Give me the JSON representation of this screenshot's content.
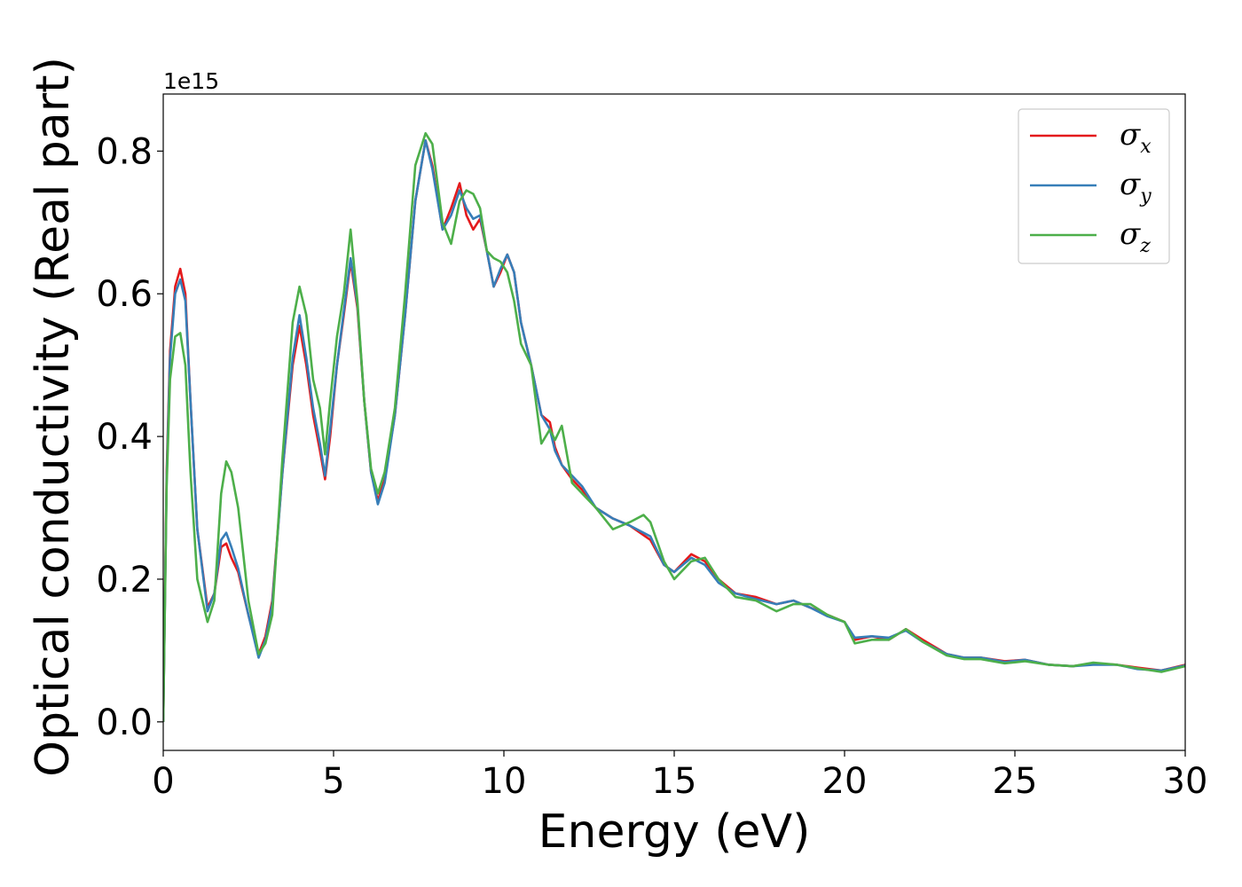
{
  "chart_data": {
    "type": "line",
    "xlabel": "Energy (eV)",
    "ylabel": "Optical conductivity (Real part)",
    "y_offset_label": "1e15",
    "xlim": [
      0,
      30
    ],
    "ylim": [
      -0.04,
      0.88
    ],
    "x_ticks": [
      0,
      5,
      10,
      15,
      20,
      25,
      30
    ],
    "x_tick_labels": [
      "0",
      "5",
      "10",
      "15",
      "20",
      "25",
      "30"
    ],
    "y_ticks": [
      0.0,
      0.2,
      0.4,
      0.6,
      0.8
    ],
    "y_tick_labels": [
      "0.0",
      "0.2",
      "0.4",
      "0.6",
      "0.8"
    ],
    "grid": false,
    "legend_position": "top-right",
    "series": [
      {
        "name": "σx",
        "symbol": "σ",
        "subscript": "x",
        "color": "#e41a1c",
        "points": [
          [
            0,
            0.0
          ],
          [
            0.1,
            0.35
          ],
          [
            0.2,
            0.52
          ],
          [
            0.35,
            0.61
          ],
          [
            0.5,
            0.635
          ],
          [
            0.65,
            0.6
          ],
          [
            0.8,
            0.45
          ],
          [
            1.0,
            0.27
          ],
          [
            1.3,
            0.16
          ],
          [
            1.5,
            0.18
          ],
          [
            1.7,
            0.245
          ],
          [
            1.85,
            0.25
          ],
          [
            2.0,
            0.23
          ],
          [
            2.2,
            0.21
          ],
          [
            2.5,
            0.15
          ],
          [
            2.8,
            0.095
          ],
          [
            3.0,
            0.12
          ],
          [
            3.2,
            0.17
          ],
          [
            3.5,
            0.35
          ],
          [
            3.8,
            0.5
          ],
          [
            4.0,
            0.555
          ],
          [
            4.2,
            0.5
          ],
          [
            4.4,
            0.43
          ],
          [
            4.6,
            0.38
          ],
          [
            4.75,
            0.34
          ],
          [
            4.9,
            0.4
          ],
          [
            5.1,
            0.5
          ],
          [
            5.3,
            0.57
          ],
          [
            5.5,
            0.645
          ],
          [
            5.7,
            0.58
          ],
          [
            5.9,
            0.45
          ],
          [
            6.1,
            0.35
          ],
          [
            6.3,
            0.31
          ],
          [
            6.5,
            0.34
          ],
          [
            6.8,
            0.43
          ],
          [
            7.1,
            0.57
          ],
          [
            7.4,
            0.73
          ],
          [
            7.7,
            0.815
          ],
          [
            7.9,
            0.78
          ],
          [
            8.2,
            0.69
          ],
          [
            8.45,
            0.72
          ],
          [
            8.7,
            0.755
          ],
          [
            8.9,
            0.71
          ],
          [
            9.1,
            0.69
          ],
          [
            9.3,
            0.705
          ],
          [
            9.5,
            0.66
          ],
          [
            9.7,
            0.61
          ],
          [
            9.9,
            0.63
          ],
          [
            10.1,
            0.655
          ],
          [
            10.3,
            0.63
          ],
          [
            10.5,
            0.56
          ],
          [
            10.8,
            0.5
          ],
          [
            11.1,
            0.43
          ],
          [
            11.35,
            0.42
          ],
          [
            11.5,
            0.385
          ],
          [
            11.7,
            0.36
          ],
          [
            12.0,
            0.34
          ],
          [
            12.3,
            0.325
          ],
          [
            12.7,
            0.3
          ],
          [
            13.2,
            0.285
          ],
          [
            13.7,
            0.275
          ],
          [
            14.3,
            0.255
          ],
          [
            14.7,
            0.22
          ],
          [
            15.0,
            0.21
          ],
          [
            15.5,
            0.235
          ],
          [
            15.9,
            0.225
          ],
          [
            16.3,
            0.2
          ],
          [
            16.8,
            0.18
          ],
          [
            17.4,
            0.175
          ],
          [
            18.0,
            0.165
          ],
          [
            18.5,
            0.17
          ],
          [
            19.0,
            0.16
          ],
          [
            19.5,
            0.15
          ],
          [
            20.0,
            0.14
          ],
          [
            20.3,
            0.115
          ],
          [
            20.8,
            0.12
          ],
          [
            21.3,
            0.115
          ],
          [
            21.8,
            0.13
          ],
          [
            22.3,
            0.115
          ],
          [
            23.0,
            0.095
          ],
          [
            23.5,
            0.09
          ],
          [
            24.0,
            0.09
          ],
          [
            24.7,
            0.085
          ],
          [
            25.3,
            0.087
          ],
          [
            26.0,
            0.08
          ],
          [
            26.7,
            0.078
          ],
          [
            27.3,
            0.082
          ],
          [
            28.0,
            0.08
          ],
          [
            28.6,
            0.076
          ],
          [
            29.3,
            0.072
          ],
          [
            30.0,
            0.08
          ]
        ]
      },
      {
        "name": "σy",
        "symbol": "σ",
        "subscript": "y",
        "color": "#377eb8",
        "points": [
          [
            0,
            0.0
          ],
          [
            0.1,
            0.34
          ],
          [
            0.2,
            0.51
          ],
          [
            0.35,
            0.6
          ],
          [
            0.5,
            0.62
          ],
          [
            0.65,
            0.59
          ],
          [
            0.8,
            0.45
          ],
          [
            1.0,
            0.27
          ],
          [
            1.3,
            0.155
          ],
          [
            1.5,
            0.18
          ],
          [
            1.7,
            0.255
          ],
          [
            1.85,
            0.265
          ],
          [
            2.0,
            0.245
          ],
          [
            2.2,
            0.215
          ],
          [
            2.5,
            0.15
          ],
          [
            2.8,
            0.09
          ],
          [
            3.0,
            0.115
          ],
          [
            3.2,
            0.165
          ],
          [
            3.5,
            0.35
          ],
          [
            3.8,
            0.51
          ],
          [
            4.0,
            0.57
          ],
          [
            4.2,
            0.51
          ],
          [
            4.4,
            0.44
          ],
          [
            4.6,
            0.39
          ],
          [
            4.75,
            0.345
          ],
          [
            4.9,
            0.41
          ],
          [
            5.1,
            0.5
          ],
          [
            5.3,
            0.575
          ],
          [
            5.5,
            0.65
          ],
          [
            5.7,
            0.585
          ],
          [
            5.9,
            0.45
          ],
          [
            6.1,
            0.35
          ],
          [
            6.3,
            0.305
          ],
          [
            6.5,
            0.335
          ],
          [
            6.8,
            0.43
          ],
          [
            7.1,
            0.57
          ],
          [
            7.4,
            0.73
          ],
          [
            7.7,
            0.815
          ],
          [
            7.9,
            0.775
          ],
          [
            8.2,
            0.69
          ],
          [
            8.45,
            0.71
          ],
          [
            8.7,
            0.745
          ],
          [
            8.9,
            0.72
          ],
          [
            9.1,
            0.705
          ],
          [
            9.3,
            0.71
          ],
          [
            9.5,
            0.66
          ],
          [
            9.7,
            0.61
          ],
          [
            9.9,
            0.635
          ],
          [
            10.1,
            0.655
          ],
          [
            10.3,
            0.63
          ],
          [
            10.5,
            0.56
          ],
          [
            10.8,
            0.5
          ],
          [
            11.1,
            0.43
          ],
          [
            11.35,
            0.41
          ],
          [
            11.5,
            0.38
          ],
          [
            11.7,
            0.36
          ],
          [
            12.0,
            0.345
          ],
          [
            12.3,
            0.33
          ],
          [
            12.7,
            0.3
          ],
          [
            13.2,
            0.285
          ],
          [
            13.7,
            0.275
          ],
          [
            14.3,
            0.26
          ],
          [
            14.7,
            0.22
          ],
          [
            15.0,
            0.21
          ],
          [
            15.5,
            0.23
          ],
          [
            15.9,
            0.22
          ],
          [
            16.3,
            0.195
          ],
          [
            16.8,
            0.18
          ],
          [
            17.4,
            0.172
          ],
          [
            18.0,
            0.165
          ],
          [
            18.5,
            0.17
          ],
          [
            19.0,
            0.16
          ],
          [
            19.5,
            0.148
          ],
          [
            20.0,
            0.14
          ],
          [
            20.3,
            0.118
          ],
          [
            20.8,
            0.12
          ],
          [
            21.3,
            0.118
          ],
          [
            21.8,
            0.128
          ],
          [
            22.3,
            0.112
          ],
          [
            23.0,
            0.095
          ],
          [
            23.5,
            0.09
          ],
          [
            24.0,
            0.09
          ],
          [
            24.7,
            0.084
          ],
          [
            25.3,
            0.087
          ],
          [
            26.0,
            0.08
          ],
          [
            26.7,
            0.078
          ],
          [
            27.3,
            0.08
          ],
          [
            28.0,
            0.08
          ],
          [
            28.6,
            0.074
          ],
          [
            29.3,
            0.072
          ],
          [
            30.0,
            0.079
          ]
        ]
      },
      {
        "name": "σz",
        "symbol": "σ",
        "subscript": "z",
        "color": "#4daf4a",
        "points": [
          [
            0,
            0.0
          ],
          [
            0.1,
            0.33
          ],
          [
            0.2,
            0.48
          ],
          [
            0.35,
            0.54
          ],
          [
            0.5,
            0.545
          ],
          [
            0.65,
            0.5
          ],
          [
            0.8,
            0.35
          ],
          [
            1.0,
            0.2
          ],
          [
            1.3,
            0.14
          ],
          [
            1.5,
            0.17
          ],
          [
            1.7,
            0.32
          ],
          [
            1.85,
            0.365
          ],
          [
            2.0,
            0.35
          ],
          [
            2.2,
            0.3
          ],
          [
            2.5,
            0.17
          ],
          [
            2.8,
            0.095
          ],
          [
            3.0,
            0.11
          ],
          [
            3.2,
            0.15
          ],
          [
            3.5,
            0.37
          ],
          [
            3.8,
            0.56
          ],
          [
            4.0,
            0.61
          ],
          [
            4.2,
            0.57
          ],
          [
            4.4,
            0.48
          ],
          [
            4.6,
            0.44
          ],
          [
            4.75,
            0.375
          ],
          [
            4.9,
            0.45
          ],
          [
            5.1,
            0.54
          ],
          [
            5.3,
            0.6
          ],
          [
            5.5,
            0.69
          ],
          [
            5.7,
            0.59
          ],
          [
            5.9,
            0.45
          ],
          [
            6.1,
            0.355
          ],
          [
            6.3,
            0.32
          ],
          [
            6.5,
            0.35
          ],
          [
            6.8,
            0.44
          ],
          [
            7.1,
            0.6
          ],
          [
            7.4,
            0.78
          ],
          [
            7.7,
            0.825
          ],
          [
            7.9,
            0.81
          ],
          [
            8.2,
            0.7
          ],
          [
            8.45,
            0.67
          ],
          [
            8.7,
            0.73
          ],
          [
            8.9,
            0.745
          ],
          [
            9.1,
            0.74
          ],
          [
            9.3,
            0.72
          ],
          [
            9.5,
            0.66
          ],
          [
            9.7,
            0.65
          ],
          [
            9.9,
            0.645
          ],
          [
            10.1,
            0.63
          ],
          [
            10.3,
            0.59
          ],
          [
            10.5,
            0.53
          ],
          [
            10.8,
            0.5
          ],
          [
            11.1,
            0.39
          ],
          [
            11.35,
            0.41
          ],
          [
            11.5,
            0.395
          ],
          [
            11.7,
            0.415
          ],
          [
            12.0,
            0.335
          ],
          [
            12.3,
            0.32
          ],
          [
            12.7,
            0.3
          ],
          [
            13.2,
            0.27
          ],
          [
            13.7,
            0.28
          ],
          [
            14.1,
            0.29
          ],
          [
            14.3,
            0.28
          ],
          [
            14.7,
            0.225
          ],
          [
            15.0,
            0.2
          ],
          [
            15.5,
            0.225
          ],
          [
            15.9,
            0.23
          ],
          [
            16.3,
            0.2
          ],
          [
            16.8,
            0.175
          ],
          [
            17.4,
            0.17
          ],
          [
            18.0,
            0.155
          ],
          [
            18.5,
            0.165
          ],
          [
            19.0,
            0.165
          ],
          [
            19.5,
            0.15
          ],
          [
            20.0,
            0.14
          ],
          [
            20.3,
            0.11
          ],
          [
            20.8,
            0.115
          ],
          [
            21.3,
            0.115
          ],
          [
            21.8,
            0.13
          ],
          [
            22.3,
            0.112
          ],
          [
            23.0,
            0.093
          ],
          [
            23.5,
            0.088
          ],
          [
            24.0,
            0.088
          ],
          [
            24.7,
            0.082
          ],
          [
            25.3,
            0.085
          ],
          [
            26.0,
            0.08
          ],
          [
            26.7,
            0.078
          ],
          [
            27.3,
            0.083
          ],
          [
            28.0,
            0.08
          ],
          [
            28.6,
            0.075
          ],
          [
            29.3,
            0.07
          ],
          [
            30.0,
            0.078
          ]
        ]
      }
    ]
  }
}
